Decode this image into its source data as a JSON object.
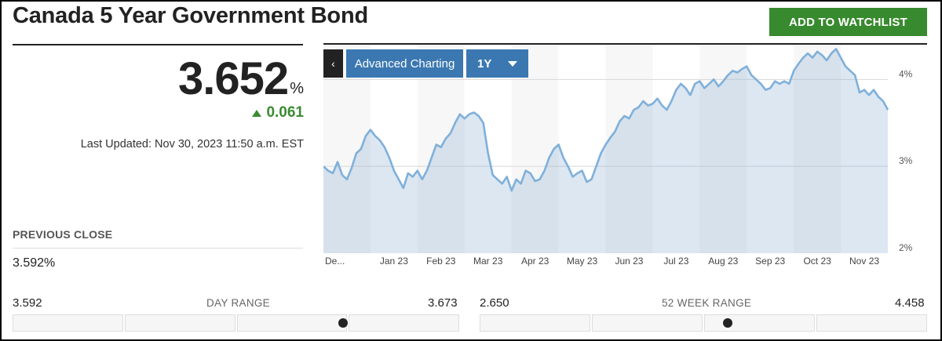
{
  "header": {
    "title": "Canada 5 Year Government Bond",
    "watchlist_label": "ADD TO WATCHLIST"
  },
  "quote": {
    "price": "3.652",
    "unit": "%",
    "change": "0.061",
    "change_direction": "up",
    "updated": "Last Updated: Nov 30, 2023 11:50 a.m. EST"
  },
  "previous_close": {
    "label": "PREVIOUS CLOSE",
    "value": "3.592%"
  },
  "chart_toolbar": {
    "back_label": "‹",
    "advanced_label": "Advanced Charting",
    "range_label": "1Y"
  },
  "chart_data": {
    "type": "area",
    "ylim": [
      2.0,
      4.4
    ],
    "y_ticks": [
      {
        "value": 2,
        "label": "2%"
      },
      {
        "value": 3,
        "label": "3%"
      },
      {
        "value": 4,
        "label": "4%"
      }
    ],
    "x_ticks": [
      "De...",
      "Jan 23",
      "Feb 23",
      "Mar 23",
      "Apr 23",
      "May 23",
      "Jun 23",
      "Jul 23",
      "Aug 23",
      "Sep 23",
      "Oct 23",
      "Nov 23"
    ],
    "gridlines": [
      3,
      4
    ],
    "series": [
      {
        "values": [
          3.0,
          2.95,
          2.92,
          3.05,
          2.9,
          2.85,
          2.98,
          3.15,
          3.2,
          3.35,
          3.42,
          3.35,
          3.3,
          3.22,
          3.1,
          2.95,
          2.85,
          2.75,
          2.92,
          2.88,
          2.95,
          2.85,
          2.95,
          3.1,
          3.25,
          3.22,
          3.32,
          3.38,
          3.5,
          3.6,
          3.55,
          3.6,
          3.62,
          3.58,
          3.5,
          3.15,
          2.9,
          2.85,
          2.8,
          2.88,
          2.72,
          2.85,
          2.8,
          2.95,
          2.92,
          2.83,
          2.85,
          2.95,
          3.1,
          3.2,
          3.25,
          3.1,
          3.0,
          2.88,
          2.92,
          2.95,
          2.82,
          2.85,
          3.0,
          3.15,
          3.25,
          3.33,
          3.4,
          3.52,
          3.58,
          3.55,
          3.65,
          3.68,
          3.75,
          3.7,
          3.72,
          3.78,
          3.7,
          3.65,
          3.75,
          3.88,
          3.95,
          3.9,
          3.82,
          3.95,
          3.98,
          3.9,
          3.95,
          4.0,
          3.92,
          3.98,
          4.05,
          4.1,
          4.08,
          4.12,
          4.15,
          4.05,
          4.0,
          3.95,
          3.88,
          3.9,
          3.98,
          3.95,
          3.98,
          3.95,
          4.1,
          4.18,
          4.25,
          4.3,
          4.25,
          4.32,
          4.28,
          4.22,
          4.3,
          4.35,
          4.25,
          4.15,
          4.1,
          4.05,
          3.85,
          3.88,
          3.82,
          3.88,
          3.8,
          3.75,
          3.65
        ]
      }
    ]
  },
  "day_range": {
    "min": "3.592",
    "title": "DAY RANGE",
    "max": "3.673",
    "current": 3.652
  },
  "week52_range": {
    "min": "2.650",
    "title": "52 WEEK RANGE",
    "max": "4.458",
    "current": 3.652
  }
}
